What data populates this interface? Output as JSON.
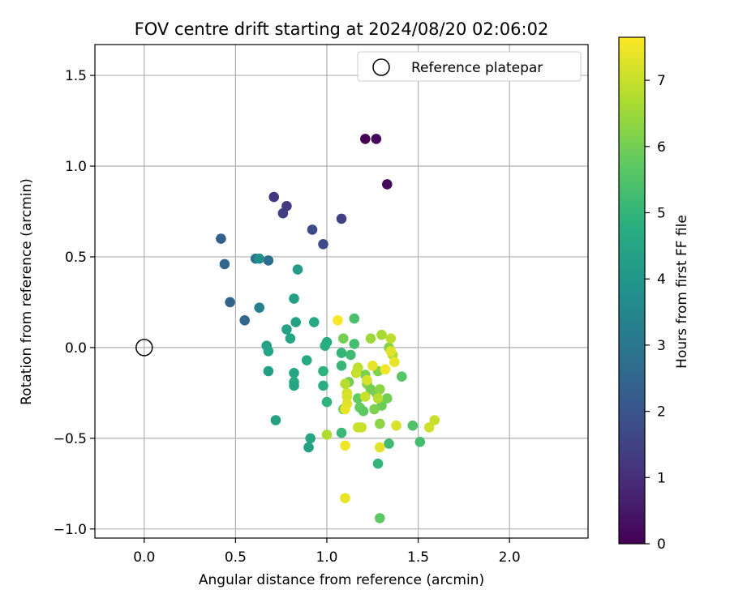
{
  "chart_data": {
    "type": "scatter",
    "title": "FOV centre drift starting at 2024/08/20 02:06:02",
    "xlabel": "Angular distance from reference (arcmin)",
    "ylabel": "Rotation from reference (arcmin)",
    "xlim": [
      -0.27,
      2.43
    ],
    "ylim": [
      -1.05,
      1.67
    ],
    "xticks": [
      0.0,
      0.5,
      1.0,
      1.5,
      2.0
    ],
    "xtick_labels": [
      "0.0",
      "0.5",
      "1.0",
      "1.5",
      "2.0"
    ],
    "yticks": [
      -1.0,
      -0.5,
      0.0,
      0.5,
      1.0,
      1.5
    ],
    "ytick_labels": [
      "−1.0",
      "−0.5",
      "0.0",
      "0.5",
      "1.0",
      "1.5"
    ],
    "grid": true,
    "legend": {
      "placement": "top-right",
      "entries": [
        "Reference platepar"
      ]
    },
    "reference": {
      "x": 0.0,
      "y": 0.0
    },
    "colorbar": {
      "label": "Hours from first FF file",
      "colormap": "viridis",
      "range": [
        0,
        7.65
      ],
      "ticks": [
        0,
        1,
        2,
        3,
        4,
        5,
        6,
        7
      ],
      "tick_labels": [
        "0",
        "1",
        "2",
        "3",
        "4",
        "5",
        "6",
        "7"
      ]
    },
    "points": [
      [
        1.21,
        1.15,
        0.0
      ],
      [
        1.27,
        1.15,
        0.1
      ],
      [
        1.33,
        0.9,
        0.2
      ],
      [
        0.71,
        0.83,
        1.2
      ],
      [
        0.78,
        0.78,
        1.3
      ],
      [
        0.76,
        0.74,
        1.4
      ],
      [
        1.08,
        0.71,
        1.5
      ],
      [
        0.92,
        0.65,
        1.7
      ],
      [
        0.98,
        0.57,
        1.8
      ],
      [
        0.42,
        0.6,
        2.3
      ],
      [
        0.44,
        0.46,
        2.6
      ],
      [
        0.61,
        0.49,
        2.9
      ],
      [
        0.68,
        0.48,
        2.7
      ],
      [
        0.47,
        0.25,
        2.4
      ],
      [
        0.55,
        0.15,
        2.5
      ],
      [
        0.63,
        0.22,
        3.3
      ],
      [
        0.63,
        0.49,
        3.8
      ],
      [
        0.84,
        0.43,
        4.2
      ],
      [
        0.82,
        0.27,
        4.3
      ],
      [
        0.83,
        0.14,
        4.4
      ],
      [
        0.78,
        0.1,
        4.4
      ],
      [
        0.8,
        0.05,
        4.5
      ],
      [
        0.67,
        0.01,
        4.4
      ],
      [
        0.68,
        -0.02,
        4.5
      ],
      [
        0.68,
        -0.13,
        4.3
      ],
      [
        0.72,
        -0.4,
        4.4
      ],
      [
        0.82,
        -0.14,
        4.5
      ],
      [
        0.82,
        -0.19,
        4.6
      ],
      [
        0.82,
        -0.21,
        4.5
      ],
      [
        0.89,
        -0.07,
        4.6
      ],
      [
        0.93,
        0.14,
        4.6
      ],
      [
        1.0,
        0.03,
        4.7
      ],
      [
        0.99,
        0.01,
        4.8
      ],
      [
        0.98,
        -0.13,
        4.9
      ],
      [
        0.98,
        -0.21,
        4.8
      ],
      [
        1.0,
        -0.3,
        4.9
      ],
      [
        0.91,
        -0.5,
        4.5
      ],
      [
        0.9,
        -0.55,
        4.4
      ],
      [
        1.08,
        -0.03,
        5.0
      ],
      [
        1.08,
        -0.1,
        5.1
      ],
      [
        1.13,
        -0.04,
        5.2
      ],
      [
        1.15,
        0.02,
        5.3
      ],
      [
        1.15,
        0.16,
        5.4
      ],
      [
        1.08,
        -0.47,
        5.1
      ],
      [
        1.28,
        -0.64,
        5.0
      ],
      [
        1.34,
        -0.53,
        5.2
      ],
      [
        1.51,
        -0.52,
        5.3
      ],
      [
        1.47,
        -0.43,
        5.5
      ],
      [
        1.41,
        -0.16,
        5.6
      ],
      [
        1.29,
        -0.94,
        5.7
      ],
      [
        1.09,
        0.05,
        6.0
      ],
      [
        1.12,
        -0.19,
        6.0
      ],
      [
        1.09,
        -0.34,
        5.9
      ],
      [
        1.17,
        -0.28,
        5.8
      ],
      [
        1.18,
        -0.33,
        5.8
      ],
      [
        1.2,
        -0.35,
        5.7
      ],
      [
        1.21,
        -0.15,
        6.1
      ],
      [
        1.22,
        -0.2,
        6.2
      ],
      [
        1.24,
        -0.23,
        6.0
      ],
      [
        1.27,
        -0.25,
        6.0
      ],
      [
        1.28,
        -0.13,
        6.2
      ],
      [
        1.29,
        -0.23,
        6.3
      ],
      [
        1.3,
        -0.32,
        5.9
      ],
      [
        1.33,
        -0.28,
        6.0
      ],
      [
        1.26,
        -0.34,
        6.1
      ],
      [
        1.34,
        0.0,
        6.2
      ],
      [
        1.29,
        -0.42,
        6.3
      ],
      [
        1.24,
        0.05,
        6.5
      ],
      [
        1.3,
        0.07,
        6.6
      ],
      [
        1.36,
        -0.04,
        6.7
      ],
      [
        1.35,
        0.05,
        6.9
      ],
      [
        1.28,
        -0.28,
        6.8
      ],
      [
        1.17,
        -0.11,
        6.9
      ],
      [
        1.16,
        -0.14,
        7.0
      ],
      [
        1.21,
        -0.27,
        7.0
      ],
      [
        1.11,
        -0.25,
        7.1
      ],
      [
        1.11,
        -0.27,
        7.2
      ],
      [
        1.11,
        -0.31,
        7.3
      ],
      [
        1.1,
        -0.34,
        7.4
      ],
      [
        1.19,
        -0.44,
        7.1
      ],
      [
        1.17,
        -0.44,
        7.0
      ],
      [
        1.22,
        -0.18,
        7.2
      ],
      [
        1.25,
        -0.1,
        7.4
      ],
      [
        1.35,
        -0.02,
        7.3
      ],
      [
        1.37,
        -0.08,
        7.4
      ],
      [
        1.32,
        -0.12,
        7.5
      ],
      [
        1.38,
        -0.43,
        7.2
      ],
      [
        1.56,
        -0.44,
        7.1
      ],
      [
        1.59,
        -0.4,
        7.0
      ],
      [
        1.29,
        -0.55,
        7.3
      ],
      [
        1.1,
        -0.54,
        7.5
      ],
      [
        1.1,
        -0.83,
        7.4
      ],
      [
        1.06,
        0.15,
        7.6
      ],
      [
        1.0,
        -0.48,
        6.7
      ],
      [
        1.1,
        -0.2,
        6.8
      ]
    ]
  }
}
